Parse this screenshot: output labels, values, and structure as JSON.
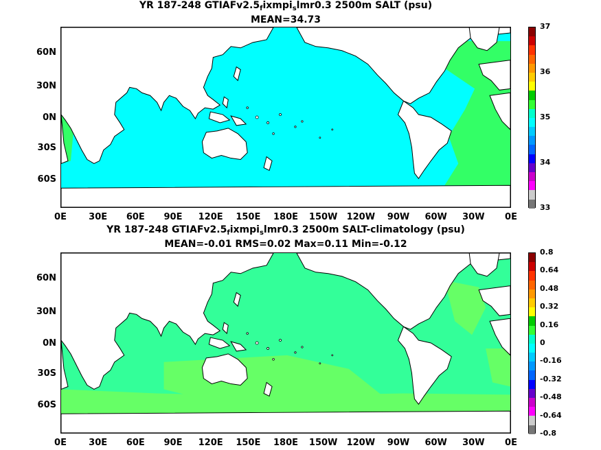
{
  "panel1": {
    "title_prefix": "YR 187-248 GTIAFv2.5",
    "title_sub1": "f",
    "title_mid": "ixmpi",
    "title_sub2": "s",
    "title_suffix": "lmr0.3 2500m SALT (psu)",
    "stats": "MEAN=34.73",
    "colorbar_ticks": [
      "37",
      "36",
      "35",
      "34",
      "33"
    ],
    "colorbar_colors": [
      "#8b0000",
      "#cc0000",
      "#ff3300",
      "#ff6600",
      "#ff9900",
      "#ffcc00",
      "#ffff00",
      "#00cc00",
      "#33ff33",
      "#00ffcc",
      "#00ffff",
      "#00ccff",
      "#0099ff",
      "#0066ff",
      "#0000ff",
      "#6600cc",
      "#cc00cc",
      "#ff00ff",
      "#cccccc",
      "#777777"
    ],
    "ocean_color": "#00ffff",
    "atlantic_color": "#33ff66"
  },
  "panel2": {
    "title_prefix": "YR 187-248 GTIAFv2.5",
    "title_sub1": "f",
    "title_mid": "ixmpi",
    "title_sub2": "s",
    "title_suffix": "lmr0.3 2500m SALT-climatology (psu)",
    "stats": "MEAN=-0.01   RMS=0.02   Max=0.11   Min=-0.12",
    "colorbar_ticks": [
      "0.8",
      "0.64",
      "0.48",
      "0.32",
      "0.16",
      "0",
      "-0.16",
      "-0.32",
      "-0.48",
      "-0.64",
      "-0.8"
    ],
    "colorbar_colors": [
      "#8b0000",
      "#cc0000",
      "#ff3300",
      "#ff6600",
      "#ff9900",
      "#ffcc00",
      "#ffff00",
      "#00cc00",
      "#33ff33",
      "#00ffcc",
      "#00ffff",
      "#00ccff",
      "#0099ff",
      "#0066ff",
      "#0000ff",
      "#6600cc",
      "#cc00cc",
      "#ff00ff",
      "#cccccc",
      "#777777"
    ],
    "ocean_color": "#33ff99",
    "anomaly_color": "#66ff66"
  },
  "axes": {
    "lat_labels": [
      "60N",
      "30N",
      "0N",
      "30S",
      "60S"
    ],
    "lon_labels": [
      "0E",
      "30E",
      "60E",
      "90E",
      "120E",
      "150E",
      "180E",
      "150W",
      "120W",
      "90W",
      "60W",
      "30W",
      "0E"
    ]
  }
}
